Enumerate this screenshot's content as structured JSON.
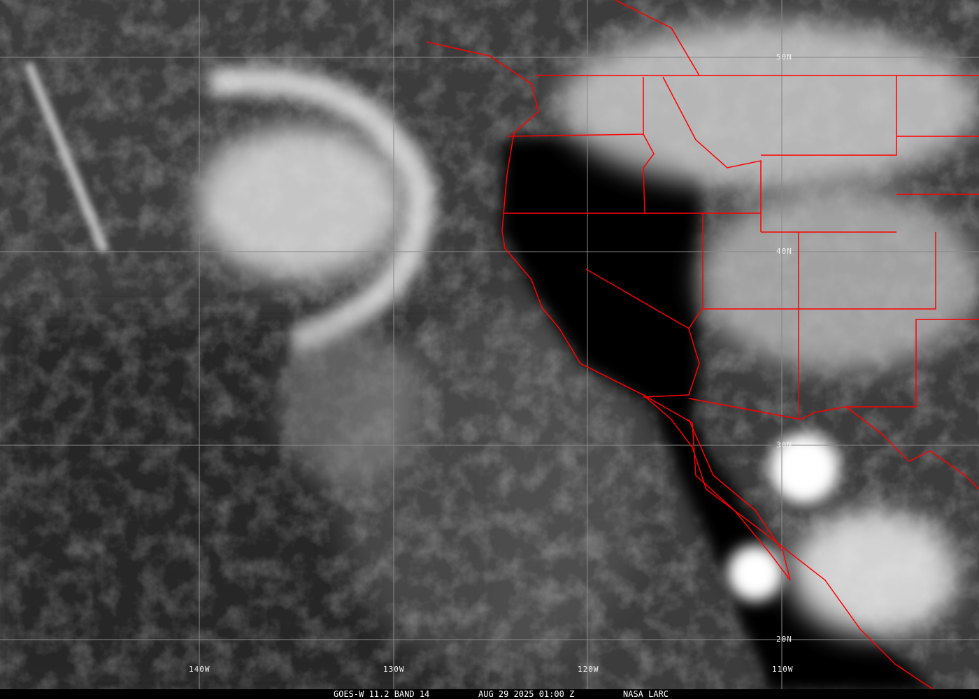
{
  "caption": {
    "satellite": "GOES-W 11.2 BAND 14",
    "datetime": "AUG 29 2025 01:00 Z",
    "source": "NASA LARC"
  },
  "grid": {
    "longitudes": [
      "140W",
      "130W",
      "120W",
      "110W"
    ],
    "latitudes": [
      "50N",
      "40N",
      "30N",
      "20N"
    ]
  },
  "colors": {
    "borders": "#ff0000",
    "grid": "#888888",
    "clouds": "#ffffff",
    "ocean": "#4a4a4a",
    "land": "#000000"
  }
}
